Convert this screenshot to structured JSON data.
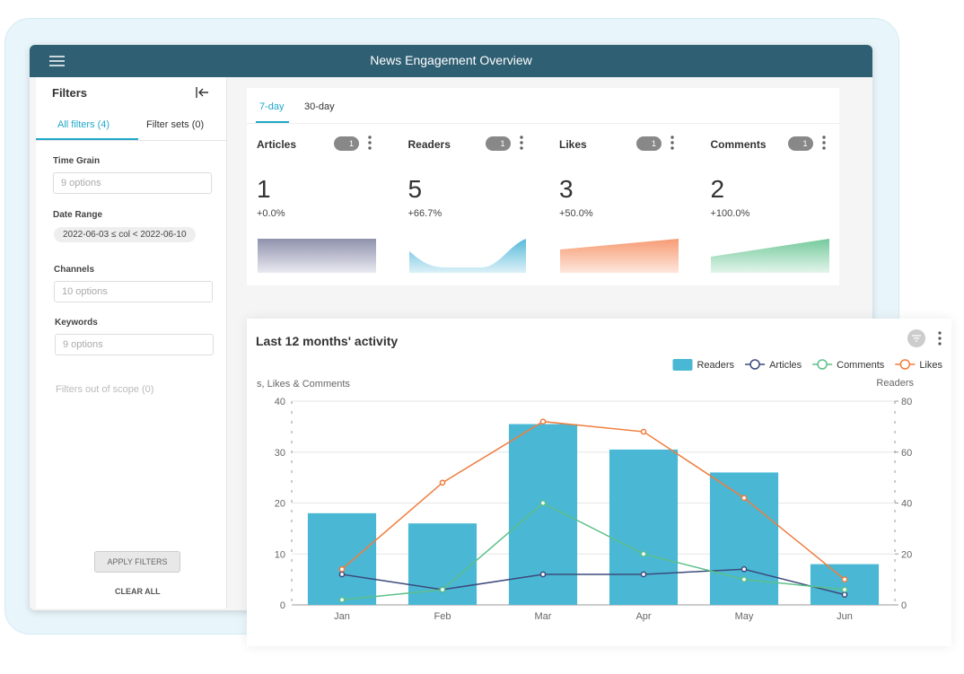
{
  "header": {
    "title": "News Engagement Overview"
  },
  "filters": {
    "title": "Filters",
    "tabs": [
      "All filters (4)",
      "Filter sets (0)"
    ],
    "fields": [
      {
        "label": "Time Grain",
        "placeholder": "9 options"
      },
      {
        "label": "Date Range",
        "value": "2022-06-03 ≤ col < 2022-06-10"
      },
      {
        "label": "Channels",
        "placeholder": "10 options"
      },
      {
        "label": "Keywords",
        "placeholder": "9 options"
      }
    ],
    "out_of_scope": "Filters out of scope (0)",
    "apply": "APPLY FILTERS",
    "clear": "CLEAR ALL"
  },
  "kpi": {
    "tabs": [
      "7-day",
      "30-day"
    ],
    "cards": [
      {
        "title": "Articles",
        "badge": "1",
        "value": "1",
        "change": "+0.0%"
      },
      {
        "title": "Readers",
        "badge": "1",
        "value": "5",
        "change": "+66.7%"
      },
      {
        "title": "Likes",
        "badge": "1",
        "value": "3",
        "change": "+50.0%"
      },
      {
        "title": "Comments",
        "badge": "1",
        "value": "2",
        "change": "+100.0%"
      }
    ]
  },
  "chart": {
    "type": "bar_line",
    "title": "Last 12 months' activity",
    "categories": [
      "Jan",
      "Feb",
      "Mar",
      "Apr",
      "May",
      "Jun"
    ],
    "series": [
      {
        "name": "Readers",
        "type": "bar",
        "axis": "y2",
        "color": "#4ab8d4",
        "values": [
          36,
          32,
          71,
          61,
          52,
          16
        ]
      },
      {
        "name": "Articles",
        "type": "line",
        "color": "#3c4a7c",
        "values": [
          6,
          3,
          6,
          6,
          7,
          2
        ]
      },
      {
        "name": "Comments",
        "type": "line",
        "color": "#5cc08a",
        "values": [
          1,
          3,
          20,
          10,
          5,
          3
        ]
      },
      {
        "name": "Likes",
        "type": "line",
        "color": "#f07c3c",
        "values": [
          7,
          24,
          36,
          34,
          21,
          5
        ]
      }
    ],
    "ylabel": "s, Likes & Comments",
    "y2label": "Readers",
    "ylim": [
      0,
      40
    ],
    "yticks": [
      0,
      10,
      20,
      30,
      40
    ],
    "y2lim": [
      0,
      80
    ],
    "y2ticks": [
      0,
      20,
      40,
      60,
      80
    ],
    "grid": true,
    "legend": "top-right"
  }
}
